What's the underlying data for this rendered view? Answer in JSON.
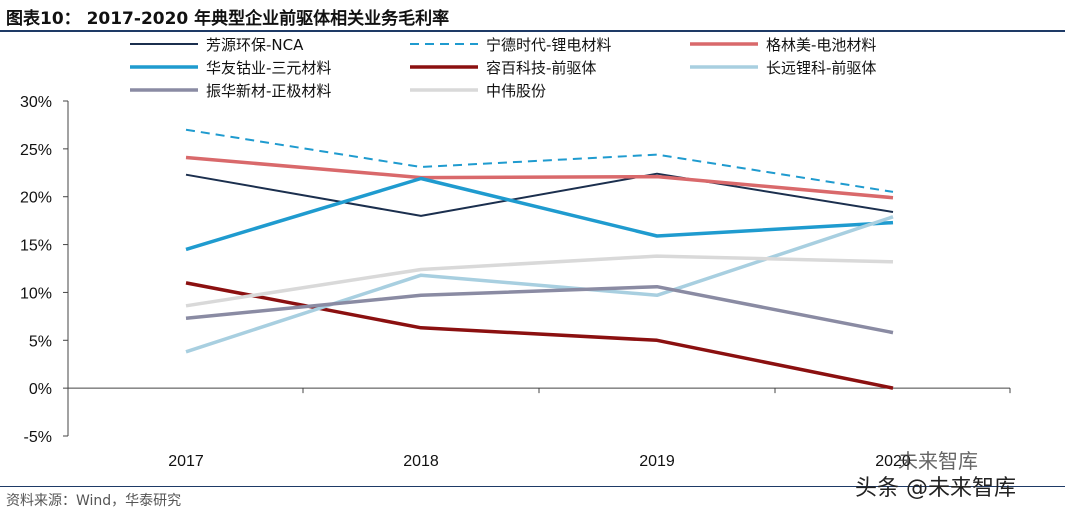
{
  "header": {
    "title": "图表10：   2017-2020 年典型企业前驱体相关业务毛利率"
  },
  "footer": {
    "source": "资料来源：Wind，华泰研究",
    "watermark": "头条 @未来智库",
    "watermark_small": "未来智库"
  },
  "chart_data": {
    "type": "line",
    "title": "2017-2020 年典型企业前驱体相关业务毛利率",
    "xlabel": "",
    "ylabel": "",
    "x": [
      "2017",
      "2018",
      "2019",
      "2020"
    ],
    "x_tick_labels": [
      "2017",
      "2018",
      "2019",
      "2020"
    ],
    "ylim": [
      -5,
      30
    ],
    "y_ticks": [
      -5,
      0,
      5,
      10,
      15,
      20,
      25,
      30
    ],
    "y_tick_labels": [
      "-5%",
      "0%",
      "5%",
      "10%",
      "15%",
      "20%",
      "25%",
      "30%"
    ],
    "y_unit": "%",
    "grid": false,
    "legend_position": "top",
    "series": [
      {
        "name": "芳源环保-NCA",
        "values": [
          22.3,
          18.0,
          22.4,
          18.4
        ],
        "color": "#1b2f4e",
        "dash": "solid",
        "width": "thin"
      },
      {
        "name": "宁德时代-锂电材料",
        "values": [
          27.0,
          23.1,
          24.4,
          20.5
        ],
        "color": "#1f9bcf",
        "dash": "dashed",
        "width": "thin"
      },
      {
        "name": "格林美-电池材料",
        "values": [
          24.1,
          22.0,
          22.1,
          19.9
        ],
        "color": "#d9696b",
        "dash": "solid",
        "width": "thick"
      },
      {
        "name": "华友钴业-三元材料",
        "values": [
          14.5,
          21.9,
          15.9,
          17.3
        ],
        "color": "#1f9bcf",
        "dash": "solid",
        "width": "thick"
      },
      {
        "name": "容百科技-前驱体",
        "values": [
          11.0,
          6.3,
          5.0,
          0.0
        ],
        "color": "#8b1010",
        "dash": "solid",
        "width": "thick"
      },
      {
        "name": "长远锂科-前驱体",
        "values": [
          3.8,
          11.8,
          9.7,
          17.9
        ],
        "color": "#a8cfe0",
        "dash": "solid",
        "width": "thick"
      },
      {
        "name": "振华新材-正极材料",
        "values": [
          7.3,
          9.7,
          10.6,
          5.8
        ],
        "color": "#8a8ba3",
        "dash": "solid",
        "width": "thick"
      },
      {
        "name": "中伟股份",
        "values": [
          8.6,
          12.4,
          13.8,
          13.2
        ],
        "color": "#d9d9d9",
        "dash": "solid",
        "width": "thick"
      }
    ]
  }
}
